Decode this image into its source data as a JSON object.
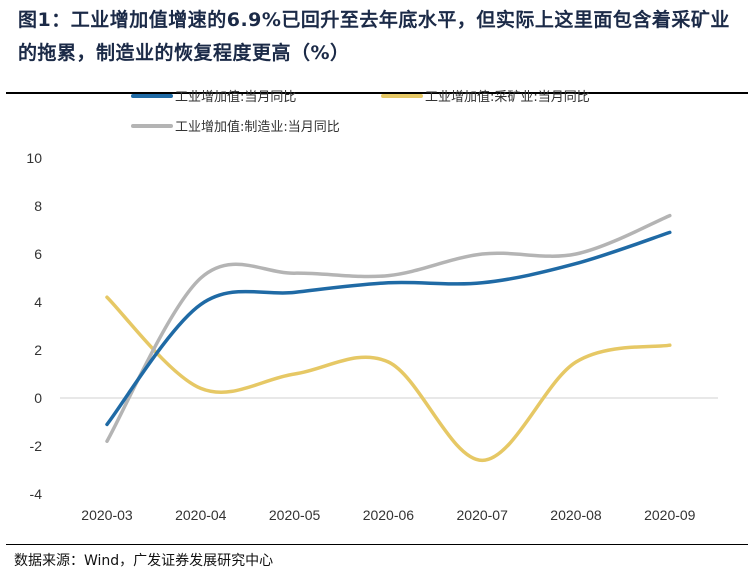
{
  "title": "图1：工业增加值增速的6.9%已回升至去年底水平，但实际上这里面包含着采矿业的拖累，制造业的恢复程度更高（%）",
  "source": "数据来源：Wind，广发证券发展研究中心",
  "chart_data": {
    "type": "line",
    "title": "图1：工业增加值增速的6.9%已回升至去年底水平，但实际上这里面包含着采矿业的拖累，制造业的恢复程度更高（%）",
    "categories": [
      "2020-03",
      "2020-04",
      "2020-05",
      "2020-06",
      "2020-07",
      "2020-08",
      "2020-09"
    ],
    "ylim": [
      -4,
      10
    ],
    "yticks": [
      "10",
      "8",
      "6",
      "4",
      "2",
      "0",
      "-2",
      "-4"
    ],
    "grid": false,
    "legend_position": "top",
    "series": [
      {
        "name": "工业增加值:当月同比",
        "color": "#1f6aa5",
        "values": [
          -1.1,
          3.9,
          4.4,
          4.8,
          4.8,
          5.6,
          6.9
        ]
      },
      {
        "name": "工业增加值:采矿业:当月同比",
        "color": "#e6c865",
        "values": [
          4.2,
          0.4,
          1.0,
          1.5,
          -2.6,
          1.5,
          2.2
        ]
      },
      {
        "name": "工业增加值:制造业:当月同比",
        "color": "#b4b4b4",
        "values": [
          -1.8,
          5.0,
          5.2,
          5.1,
          6.0,
          6.0,
          7.6
        ]
      }
    ]
  }
}
